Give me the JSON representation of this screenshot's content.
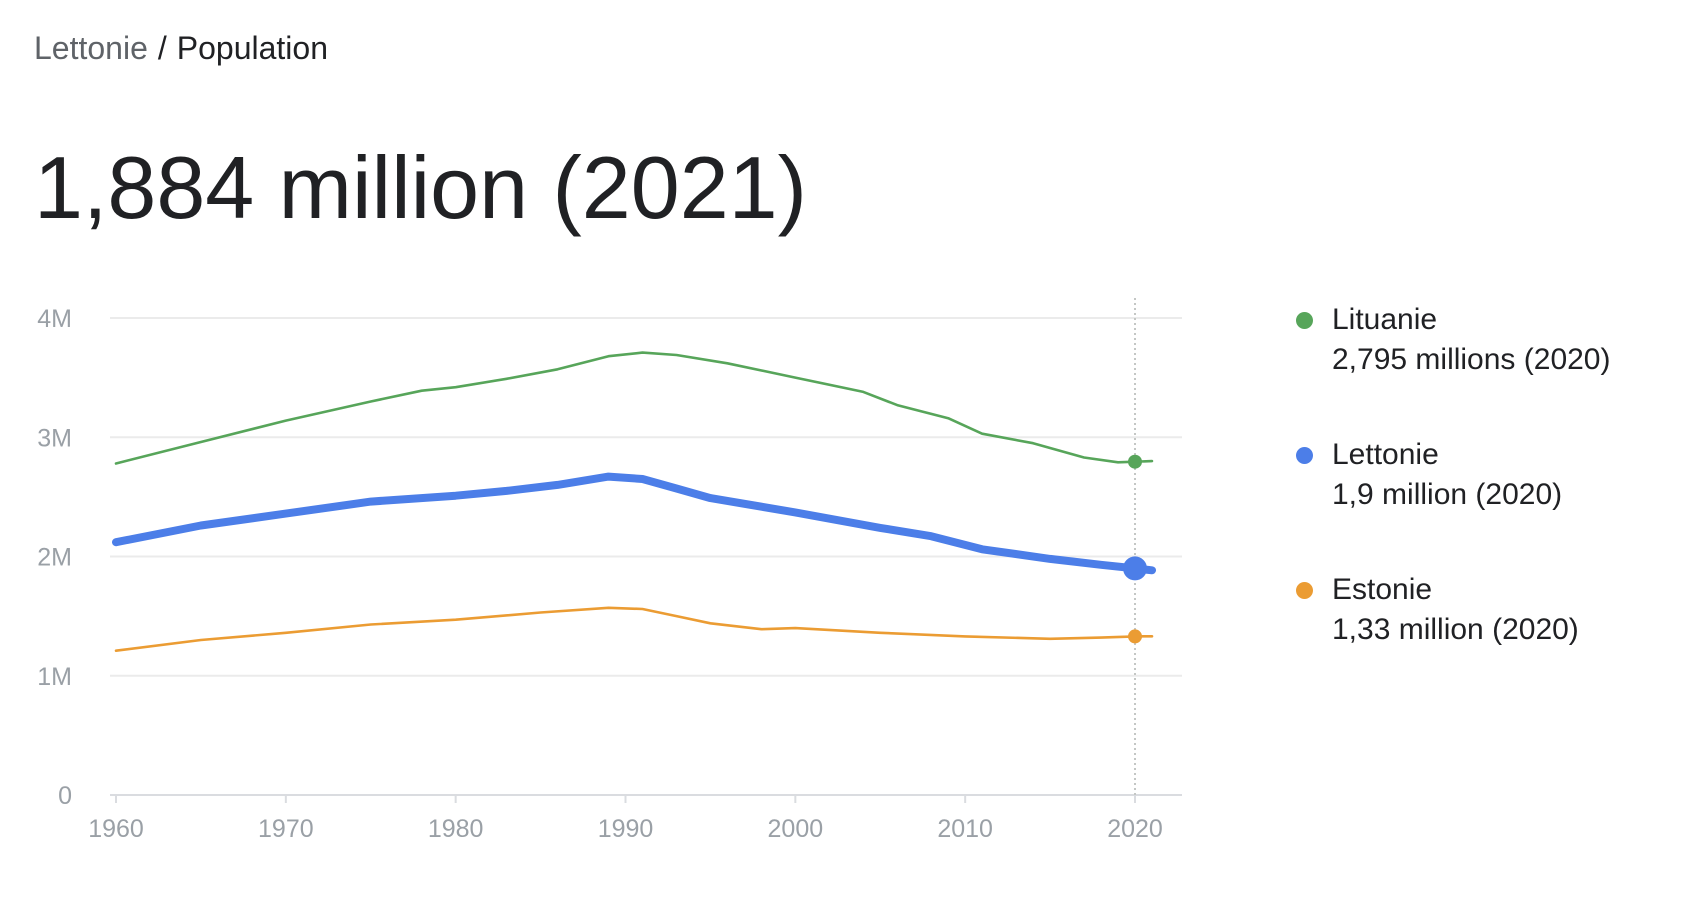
{
  "breadcrumb": {
    "parent": "Lettonie",
    "separator": "/",
    "current": "Population"
  },
  "headline": "1,884 million (2021)",
  "legend": [
    {
      "name": "Lituanie",
      "value": "2,795 millions (2020)",
      "color": "#57a55a"
    },
    {
      "name": "Lettonie",
      "value": "1,9 million (2020)",
      "color": "#4c7ee8"
    },
    {
      "name": "Estonie",
      "value": "1,33 million (2020)",
      "color": "#eb9c33"
    }
  ],
  "chart_data": {
    "type": "line",
    "title": "",
    "xlabel": "",
    "ylabel": "",
    "xlim": [
      1960,
      2021
    ],
    "ylim": [
      0,
      4000000
    ],
    "grid": true,
    "legend_position": "right",
    "x_ticks": [
      1960,
      1970,
      1980,
      1990,
      2000,
      2010,
      2020
    ],
    "x_tick_labels": [
      "1960",
      "1970",
      "1980",
      "1990",
      "2000",
      "2010",
      "2020"
    ],
    "y_ticks": [
      0,
      1000000,
      2000000,
      3000000,
      4000000
    ],
    "y_tick_labels": [
      "0",
      "1M",
      "2M",
      "3M",
      "4M"
    ],
    "highlight_year": 2020,
    "series": [
      {
        "name": "Lituanie",
        "color": "#57a55a",
        "points": [
          [
            1960,
            2780000
          ],
          [
            1965,
            2960000
          ],
          [
            1970,
            3140000
          ],
          [
            1975,
            3300000
          ],
          [
            1978,
            3390000
          ],
          [
            1980,
            3420000
          ],
          [
            1983,
            3490000
          ],
          [
            1986,
            3570000
          ],
          [
            1989,
            3680000
          ],
          [
            1991,
            3710000
          ],
          [
            1993,
            3690000
          ],
          [
            1996,
            3620000
          ],
          [
            2000,
            3500000
          ],
          [
            2004,
            3380000
          ],
          [
            2006,
            3270000
          ],
          [
            2009,
            3160000
          ],
          [
            2011,
            3030000
          ],
          [
            2014,
            2950000
          ],
          [
            2017,
            2830000
          ],
          [
            2019,
            2790000
          ],
          [
            2020,
            2795000
          ],
          [
            2021,
            2800000
          ]
        ]
      },
      {
        "name": "Lettonie",
        "color": "#4c7ee8",
        "points": [
          [
            1960,
            2120000
          ],
          [
            1965,
            2260000
          ],
          [
            1970,
            2360000
          ],
          [
            1975,
            2460000
          ],
          [
            1980,
            2510000
          ],
          [
            1983,
            2550000
          ],
          [
            1986,
            2600000
          ],
          [
            1989,
            2670000
          ],
          [
            1991,
            2650000
          ],
          [
            1993,
            2570000
          ],
          [
            1995,
            2490000
          ],
          [
            2000,
            2370000
          ],
          [
            2005,
            2240000
          ],
          [
            2008,
            2170000
          ],
          [
            2011,
            2060000
          ],
          [
            2015,
            1980000
          ],
          [
            2018,
            1930000
          ],
          [
            2020,
            1900000
          ],
          [
            2021,
            1884000
          ]
        ]
      },
      {
        "name": "Estonie",
        "color": "#eb9c33",
        "points": [
          [
            1960,
            1210000
          ],
          [
            1965,
            1300000
          ],
          [
            1970,
            1360000
          ],
          [
            1975,
            1430000
          ],
          [
            1980,
            1470000
          ],
          [
            1985,
            1530000
          ],
          [
            1989,
            1570000
          ],
          [
            1991,
            1560000
          ],
          [
            1993,
            1500000
          ],
          [
            1995,
            1440000
          ],
          [
            1998,
            1390000
          ],
          [
            2000,
            1400000
          ],
          [
            2005,
            1360000
          ],
          [
            2010,
            1330000
          ],
          [
            2015,
            1310000
          ],
          [
            2018,
            1320000
          ],
          [
            2020,
            1330000
          ],
          [
            2021,
            1331000
          ]
        ]
      }
    ]
  }
}
